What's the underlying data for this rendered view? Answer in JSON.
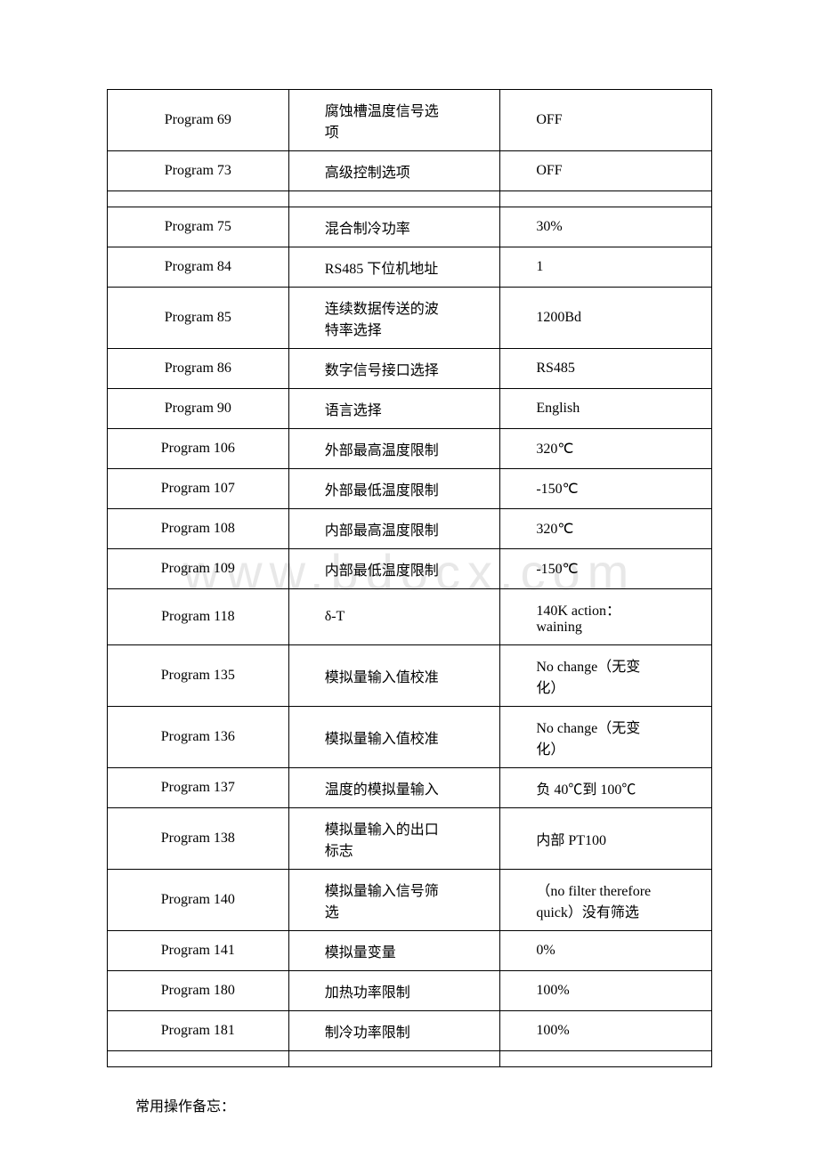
{
  "watermark": "www.bdocx.com",
  "table": {
    "rows": [
      {
        "col1": "Program 69",
        "col2_line1": "腐蚀槽温度信号选",
        "col2_line2": "项",
        "col3": "OFF",
        "multiline": true
      },
      {
        "col1": "Program 73",
        "col2": "高级控制选项",
        "col3": "OFF"
      },
      {
        "empty": true
      },
      {
        "col1": "Program 75",
        "col2": "混合制冷功率",
        "col3": "30%"
      },
      {
        "col1": "Program 84",
        "col2": "RS485 下位机地址",
        "col3": "1"
      },
      {
        "col1": "Program 85",
        "col2_line1": "连续数据传送的波",
        "col2_line2": "特率选择",
        "col3": "1200Bd",
        "multiline": true
      },
      {
        "col1": "Program 86",
        "col2": "数字信号接口选择",
        "col3": "RS485"
      },
      {
        "col1": "Program 90",
        "col2": "语言选择",
        "col3": "English"
      },
      {
        "col1": "Program 106",
        "col2": "外部最高温度限制",
        "col3": "320℃"
      },
      {
        "col1": "Program 107",
        "col2": "外部最低温度限制",
        "col3": "-150℃"
      },
      {
        "col1": "Program 108",
        "col2": "内部最高温度限制",
        "col3": "320℃"
      },
      {
        "col1": "Program 109",
        "col2": "内部最低温度限制",
        "col3": "-150℃"
      },
      {
        "col1": "Program 118",
        "col2": "δ-T",
        "col3_line1": "140K action：",
        "col3_line2": "waining",
        "multiline3": true
      },
      {
        "col1": "Program 135",
        "col2": "模拟量输入值校准",
        "col3_line1": "No change（无变",
        "col3_line2": "化）",
        "multiline3": true
      },
      {
        "col1": "Program 136",
        "col2": "模拟量输入值校准",
        "col3_line1": "No change（无变",
        "col3_line2": "化）",
        "multiline3": true
      },
      {
        "col1": "Program 137",
        "col2": "温度的模拟量输入",
        "col3": "负 40℃到 100℃"
      },
      {
        "col1": "Program 138",
        "col2_line1": "模拟量输入的出口",
        "col2_line2": "标志",
        "col3": "内部 PT100",
        "multiline": true
      },
      {
        "col1": "Program 140",
        "col2_line1": "模拟量输入信号筛",
        "col2_line2": "选",
        "col3_line1": "（no filter therefore",
        "col3_line2": "quick）没有筛选",
        "multiline": true,
        "multiline3": true
      },
      {
        "col1": "Program 141",
        "col2": "模拟量变量",
        "col3": "0%"
      },
      {
        "col1": "Program 180",
        "col2": "加热功率限制",
        "col3": "100%"
      },
      {
        "col1": "Program 181",
        "col2": "制冷功率限制",
        "col3": "100%"
      },
      {
        "empty": true
      }
    ]
  },
  "footer": "常用操作备忘："
}
